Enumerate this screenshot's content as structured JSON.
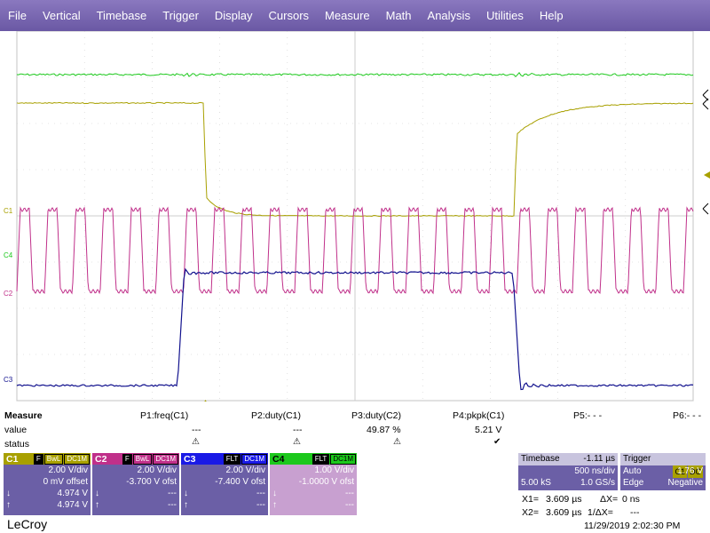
{
  "menu": [
    "File",
    "Vertical",
    "Timebase",
    "Trigger",
    "Display",
    "Cursors",
    "Measure",
    "Math",
    "Analysis",
    "Utilities",
    "Help"
  ],
  "channel_markers": {
    "c1": "C1",
    "c4": "C4",
    "c2": "C2",
    "c3": "C3"
  },
  "colors": {
    "c1": "#a8a000",
    "c2": "#c0308a",
    "c3": "#12128e",
    "c4": "#1cc81c",
    "menu": "#7a68b4",
    "panel": "#6b5fa6"
  },
  "measure": {
    "title": "Measure",
    "row_labels": [
      "value",
      "status"
    ],
    "params": [
      {
        "name": "P1:freq(C1)",
        "value": "---",
        "status": "warning-icon"
      },
      {
        "name": "P2:duty(C1)",
        "value": "---",
        "status": "warning-icon"
      },
      {
        "name": "P3:duty(C2)",
        "value": "49.87 %",
        "status": "warning-icon"
      },
      {
        "name": "P4:pkpk(C1)",
        "value": "5.21 V",
        "status": "check-icon"
      },
      {
        "name": "P5:- - -",
        "value": "",
        "status": ""
      },
      {
        "name": "P6:- - -",
        "value": "",
        "status": ""
      }
    ]
  },
  "channels": [
    {
      "name": "C1",
      "badges": [
        "F",
        "BwL",
        "DC1M"
      ],
      "vdiv": "2.00 V/div",
      "offset": "0 mV offset",
      "down": "4.974 V",
      "up": "4.974 V",
      "color": "#a8a000"
    },
    {
      "name": "C2",
      "badges": [
        "F",
        "BwL",
        "DC1M"
      ],
      "vdiv": "2.00 V/div",
      "offset": "-3.700 V ofst",
      "down": "---",
      "up": "---",
      "color": "#c0308a"
    },
    {
      "name": "C3",
      "badges": [
        "FLT",
        "DC1M"
      ],
      "vdiv": "2.00 V/div",
      "offset": "-7.400 V ofst",
      "down": "---",
      "up": "---",
      "color": "#1a1ae6"
    },
    {
      "name": "C4",
      "badges": [
        "FLT",
        "DC1M"
      ],
      "vdiv": "1.00 V/div",
      "offset": "-1.0000 V ofst",
      "down": "---",
      "up": "---",
      "color": "#1cc81c"
    }
  ],
  "timebase": {
    "label": "Timebase",
    "delay": "-1.11 µs",
    "tdiv": "500 ns/div",
    "samples": "5.00 kS",
    "rate": "1.0 GS/s"
  },
  "trigger": {
    "label": "Trigger",
    "source": "C1",
    "coupling": "DC",
    "mode": "Auto",
    "level": "1.76 V",
    "type": "Edge",
    "slope": "Negative"
  },
  "cursors": {
    "x1_label": "X1=",
    "x1": "3.609 µs",
    "dx_label": "ΔX=",
    "dx": "0 ns",
    "x2_label": "X2=",
    "x2": "3.609 µs",
    "inv_label": "1/ΔX=",
    "inv": "---"
  },
  "footer": {
    "logo": "LeCroy",
    "datetime": "11/29/2019 2:02:30 PM"
  }
}
